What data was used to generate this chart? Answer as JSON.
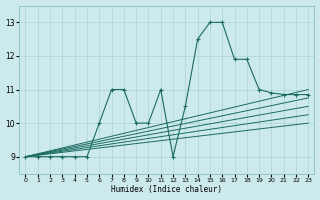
{
  "title": "",
  "xlabel": "Humidex (Indice chaleur)",
  "ylabel": "",
  "bg_color": "#cce9eb",
  "grid_color": "#aad4d7",
  "line_color": "#1a6b62",
  "xlim": [
    -0.5,
    23.5
  ],
  "ylim": [
    8.5,
    13.5
  ],
  "xticks": [
    0,
    1,
    2,
    3,
    4,
    5,
    6,
    7,
    8,
    9,
    10,
    11,
    12,
    13,
    14,
    15,
    16,
    17,
    18,
    19,
    20,
    21,
    22,
    23
  ],
  "yticks": [
    9,
    10,
    11,
    12,
    13
  ],
  "main_x": [
    0,
    1,
    2,
    3,
    4,
    5,
    6,
    7,
    8,
    9,
    10,
    11,
    12,
    13,
    14,
    15,
    16,
    17,
    18,
    19,
    20,
    21,
    22,
    23
  ],
  "main_y": [
    9.0,
    9.0,
    9.0,
    9.0,
    9.0,
    9.0,
    10.0,
    11.0,
    11.0,
    10.0,
    10.0,
    11.0,
    9.0,
    10.5,
    12.5,
    13.0,
    13.0,
    11.9,
    11.9,
    11.0,
    10.9,
    10.85,
    10.85,
    10.85
  ],
  "lines_y_end": [
    11.0,
    10.75,
    10.5,
    10.25,
    10.0
  ],
  "line_y_start": 9.0,
  "line_x_start": 0,
  "line_x_end": 23
}
